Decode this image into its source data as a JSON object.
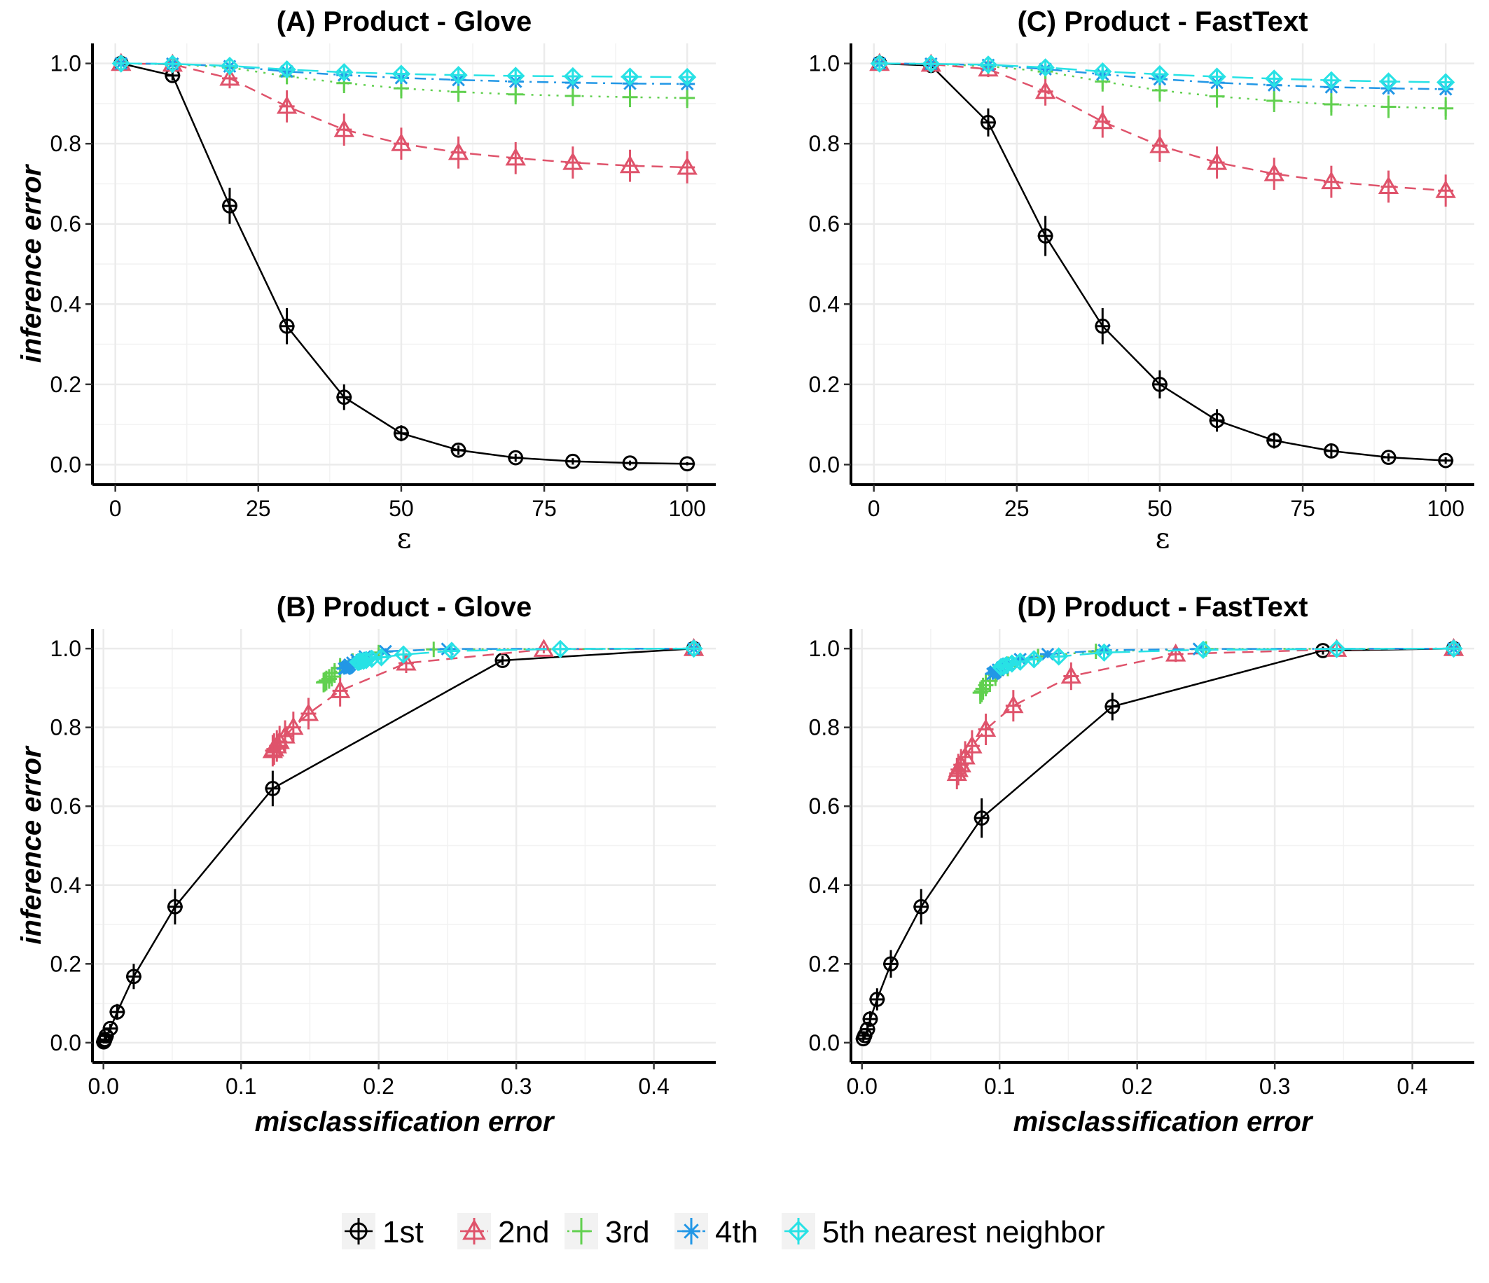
{
  "legend": {
    "items": [
      "1st",
      "2nd",
      "3rd",
      "4th",
      "5th nearest neighbor"
    ],
    "colors": [
      "#000000",
      "#DF536B",
      "#61D04F",
      "#2297E6",
      "#28E2E5"
    ],
    "shapes": [
      "circle-plus",
      "triangle-plus",
      "plus",
      "asterisk",
      "diamond-plus"
    ],
    "linestyles": [
      "solid",
      "dashed",
      "dotted",
      "dotdash",
      "longdash"
    ],
    "placement": "bottom"
  },
  "chart_data": [
    {
      "id": "A",
      "type": "line",
      "title": "(A) Product - Glove",
      "xlabel": "ε",
      "ylabel": "inference error",
      "xlim": [
        -4,
        105
      ],
      "ylim": [
        -0.05,
        1.05
      ],
      "xticks": [
        "0",
        "25",
        "50",
        "75",
        "100"
      ],
      "yticks": [
        "0.0",
        "0.2",
        "0.4",
        "0.6",
        "0.8",
        "1.0"
      ],
      "grid": true,
      "x": [
        1,
        10,
        20,
        30,
        40,
        50,
        60,
        70,
        80,
        90,
        100
      ],
      "series": [
        {
          "name": "1st",
          "values": [
            1.0,
            0.97,
            0.645,
            0.345,
            0.168,
            0.078,
            0.036,
            0.017,
            0.008,
            0.004,
            0.002
          ],
          "errors": [
            0.004,
            0.012,
            0.045,
            0.045,
            0.032,
            0.02,
            0.012,
            0.01,
            0.008,
            0.006,
            0.004
          ]
        },
        {
          "name": "2nd",
          "values": [
            1.0,
            0.998,
            0.963,
            0.893,
            0.835,
            0.8,
            0.778,
            0.764,
            0.753,
            0.745,
            0.741
          ],
          "errors": [
            0.004,
            0.01,
            0.025,
            0.04,
            0.04,
            0.04,
            0.04,
            0.04,
            0.04,
            0.04,
            0.04
          ]
        },
        {
          "name": "3rd",
          "values": [
            1.0,
            0.998,
            0.99,
            0.968,
            0.951,
            0.938,
            0.929,
            0.923,
            0.919,
            0.916,
            0.914
          ],
          "errors": [
            0.003,
            0.006,
            0.012,
            0.02,
            0.025,
            0.025,
            0.025,
            0.025,
            0.025,
            0.025,
            0.025
          ]
        },
        {
          "name": "4th",
          "values": [
            1.0,
            0.999,
            0.993,
            0.98,
            0.971,
            0.964,
            0.959,
            0.955,
            0.952,
            0.95,
            0.949
          ],
          "errors": [
            0.003,
            0.004,
            0.008,
            0.012,
            0.015,
            0.015,
            0.015,
            0.015,
            0.015,
            0.015,
            0.015
          ]
        },
        {
          "name": "5th nearest neighbor",
          "values": [
            1.0,
            0.999,
            0.994,
            0.985,
            0.978,
            0.974,
            0.971,
            0.969,
            0.968,
            0.967,
            0.966
          ],
          "errors": [
            0.003,
            0.004,
            0.006,
            0.01,
            0.012,
            0.012,
            0.012,
            0.012,
            0.012,
            0.012,
            0.012
          ]
        }
      ]
    },
    {
      "id": "C",
      "type": "line",
      "title": "(C) Product - FastText",
      "xlabel": "ε",
      "ylabel": "",
      "xlim": [
        -4,
        105
      ],
      "ylim": [
        -0.05,
        1.05
      ],
      "xticks": [
        "0",
        "25",
        "50",
        "75",
        "100"
      ],
      "yticks": [
        "0.0",
        "0.2",
        "0.4",
        "0.6",
        "0.8",
        "1.0"
      ],
      "grid": true,
      "x": [
        1,
        10,
        20,
        30,
        40,
        50,
        60,
        70,
        80,
        90,
        100
      ],
      "series": [
        {
          "name": "1st",
          "values": [
            1.0,
            0.995,
            0.853,
            0.57,
            0.345,
            0.2,
            0.11,
            0.06,
            0.034,
            0.018,
            0.01
          ],
          "errors": [
            0.004,
            0.01,
            0.035,
            0.05,
            0.045,
            0.035,
            0.028,
            0.02,
            0.014,
            0.01,
            0.008
          ]
        },
        {
          "name": "2nd",
          "values": [
            1.0,
            0.998,
            0.986,
            0.93,
            0.855,
            0.795,
            0.753,
            0.725,
            0.705,
            0.693,
            0.683
          ],
          "errors": [
            0.004,
            0.01,
            0.02,
            0.035,
            0.04,
            0.04,
            0.04,
            0.04,
            0.04,
            0.04,
            0.04
          ]
        },
        {
          "name": "3rd",
          "values": [
            1.0,
            0.999,
            0.993,
            0.98,
            0.955,
            0.933,
            0.918,
            0.907,
            0.898,
            0.892,
            0.888
          ],
          "errors": [
            0.003,
            0.005,
            0.01,
            0.018,
            0.025,
            0.028,
            0.028,
            0.028,
            0.028,
            0.028,
            0.028
          ]
        },
        {
          "name": "4th",
          "values": [
            1.0,
            0.999,
            0.996,
            0.986,
            0.973,
            0.961,
            0.952,
            0.946,
            0.941,
            0.938,
            0.936
          ],
          "errors": [
            0.003,
            0.004,
            0.006,
            0.01,
            0.014,
            0.015,
            0.015,
            0.015,
            0.015,
            0.015,
            0.015
          ]
        },
        {
          "name": "5th nearest neighbor",
          "values": [
            1.0,
            0.999,
            0.997,
            0.99,
            0.98,
            0.973,
            0.967,
            0.962,
            0.958,
            0.955,
            0.953
          ],
          "errors": [
            0.003,
            0.004,
            0.005,
            0.008,
            0.012,
            0.012,
            0.012,
            0.012,
            0.012,
            0.012,
            0.012
          ]
        }
      ]
    },
    {
      "id": "B",
      "type": "line",
      "title": "(B) Product - Glove",
      "xlabel": "misclassification error",
      "ylabel": "inference error",
      "xlim": [
        -0.008,
        0.445
      ],
      "ylim": [
        -0.05,
        1.05
      ],
      "xticks": [
        "0.0",
        "0.1",
        "0.2",
        "0.3",
        "0.4"
      ],
      "yticks": [
        "0.0",
        "0.2",
        "0.4",
        "0.6",
        "0.8",
        "1.0"
      ],
      "grid": true,
      "series": [
        {
          "name": "1st",
          "x": [
            0.429,
            0.29,
            0.123,
            0.052,
            0.022,
            0.01,
            0.005,
            0.002,
            0.001,
            0.0005,
            0.0002
          ],
          "values": [
            1.0,
            0.97,
            0.645,
            0.345,
            0.168,
            0.078,
            0.036,
            0.017,
            0.008,
            0.004,
            0.002
          ],
          "errors": [
            0.004,
            0.012,
            0.045,
            0.045,
            0.032,
            0.02,
            0.012,
            0.01,
            0.008,
            0.006,
            0.004
          ]
        },
        {
          "name": "2nd",
          "x": [
            0.429,
            0.32,
            0.22,
            0.172,
            0.149,
            0.138,
            0.132,
            0.128,
            0.126,
            0.124,
            0.123
          ],
          "values": [
            1.0,
            0.998,
            0.963,
            0.893,
            0.835,
            0.8,
            0.778,
            0.764,
            0.753,
            0.745,
            0.741
          ],
          "errors": [
            0.004,
            0.01,
            0.025,
            0.04,
            0.04,
            0.04,
            0.04,
            0.04,
            0.04,
            0.04,
            0.04
          ]
        },
        {
          "name": "3rd",
          "x": [
            0.429,
            0.24,
            0.2,
            0.181,
            0.172,
            0.168,
            0.166,
            0.164,
            0.162,
            0.161,
            0.16
          ],
          "values": [
            1.0,
            0.998,
            0.99,
            0.968,
            0.951,
            0.938,
            0.929,
            0.923,
            0.919,
            0.916,
            0.914
          ],
          "errors": [
            0.003,
            0.006,
            0.012,
            0.02,
            0.025,
            0.025,
            0.025,
            0.025,
            0.025,
            0.025,
            0.025
          ]
        },
        {
          "name": "4th",
          "x": [
            0.429,
            0.25,
            0.205,
            0.19,
            0.184,
            0.181,
            0.179,
            0.178,
            0.177,
            0.176,
            0.175
          ],
          "values": [
            1.0,
            0.999,
            0.993,
            0.98,
            0.971,
            0.964,
            0.959,
            0.955,
            0.952,
            0.95,
            0.949
          ],
          "errors": [
            0.003,
            0.004,
            0.008,
            0.012,
            0.015,
            0.015,
            0.015,
            0.015,
            0.015,
            0.015,
            0.015
          ]
        },
        {
          "name": "5th nearest neighbor",
          "x": [
            0.429,
            0.332,
            0.253,
            0.218,
            0.202,
            0.195,
            0.191,
            0.189,
            0.187,
            0.186,
            0.185
          ],
          "values": [
            1.0,
            0.999,
            0.994,
            0.985,
            0.978,
            0.974,
            0.971,
            0.969,
            0.968,
            0.967,
            0.966
          ],
          "errors": [
            0.003,
            0.004,
            0.006,
            0.01,
            0.012,
            0.012,
            0.012,
            0.012,
            0.012,
            0.012,
            0.012
          ]
        }
      ]
    },
    {
      "id": "D",
      "type": "line",
      "title": "(D) Product - FastText",
      "xlabel": "misclassification error",
      "ylabel": "",
      "xlim": [
        -0.008,
        0.445
      ],
      "ylim": [
        -0.05,
        1.05
      ],
      "xticks": [
        "0.0",
        "0.1",
        "0.2",
        "0.3",
        "0.4"
      ],
      "yticks": [
        "0.0",
        "0.2",
        "0.4",
        "0.6",
        "0.8",
        "1.0"
      ],
      "grid": true,
      "series": [
        {
          "name": "1st",
          "x": [
            0.43,
            0.335,
            0.182,
            0.087,
            0.043,
            0.021,
            0.011,
            0.006,
            0.004,
            0.002,
            0.001
          ],
          "values": [
            1.0,
            0.995,
            0.853,
            0.57,
            0.345,
            0.2,
            0.11,
            0.06,
            0.034,
            0.018,
            0.01
          ],
          "errors": [
            0.004,
            0.01,
            0.035,
            0.05,
            0.045,
            0.035,
            0.028,
            0.02,
            0.014,
            0.01,
            0.008
          ]
        },
        {
          "name": "2nd",
          "x": [
            0.43,
            0.345,
            0.228,
            0.152,
            0.11,
            0.09,
            0.08,
            0.075,
            0.072,
            0.07,
            0.069
          ],
          "values": [
            1.0,
            0.998,
            0.986,
            0.93,
            0.855,
            0.795,
            0.753,
            0.725,
            0.705,
            0.693,
            0.683
          ],
          "errors": [
            0.004,
            0.01,
            0.02,
            0.035,
            0.04,
            0.04,
            0.04,
            0.04,
            0.04,
            0.04,
            0.04
          ]
        },
        {
          "name": "3rd",
          "x": [
            0.43,
            0.25,
            0.17,
            0.128,
            0.106,
            0.097,
            0.093,
            0.09,
            0.088,
            0.087,
            0.086
          ],
          "values": [
            1.0,
            0.999,
            0.993,
            0.98,
            0.955,
            0.933,
            0.918,
            0.907,
            0.898,
            0.892,
            0.888
          ],
          "errors": [
            0.003,
            0.005,
            0.01,
            0.018,
            0.025,
            0.028,
            0.028,
            0.028,
            0.028,
            0.028,
            0.028
          ]
        },
        {
          "name": "4th",
          "x": [
            0.43,
            0.245,
            0.176,
            0.135,
            0.115,
            0.106,
            0.102,
            0.099,
            0.097,
            0.096,
            0.095
          ],
          "values": [
            1.0,
            0.999,
            0.996,
            0.986,
            0.973,
            0.961,
            0.952,
            0.946,
            0.941,
            0.938,
            0.936
          ],
          "errors": [
            0.003,
            0.004,
            0.006,
            0.01,
            0.014,
            0.015,
            0.015,
            0.015,
            0.015,
            0.015,
            0.015
          ]
        },
        {
          "name": "5th nearest neighbor",
          "x": [
            0.43,
            0.345,
            0.248,
            0.176,
            0.143,
            0.125,
            0.115,
            0.109,
            0.105,
            0.103,
            0.101
          ],
          "values": [
            1.0,
            0.999,
            0.997,
            0.99,
            0.98,
            0.973,
            0.967,
            0.962,
            0.958,
            0.955,
            0.953
          ],
          "errors": [
            0.003,
            0.004,
            0.005,
            0.008,
            0.012,
            0.012,
            0.012,
            0.012,
            0.012,
            0.012,
            0.012
          ]
        }
      ]
    }
  ]
}
